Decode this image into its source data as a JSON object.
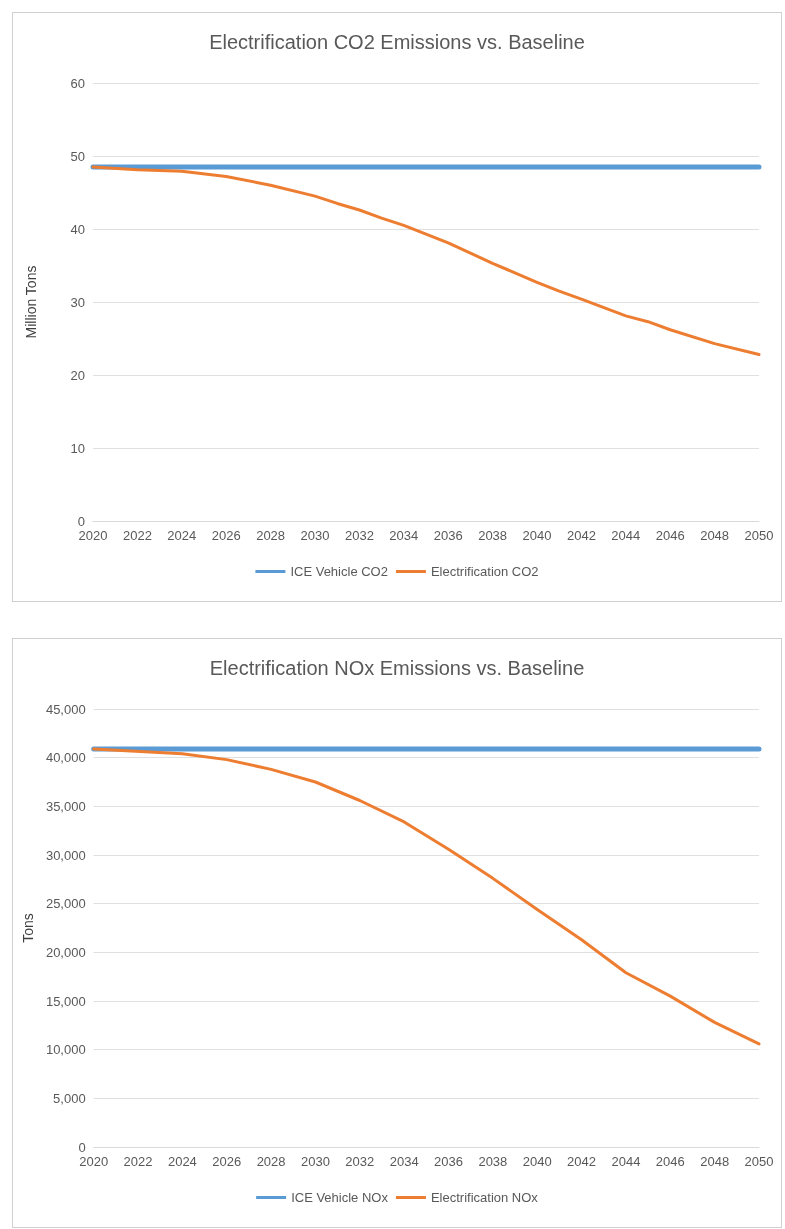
{
  "chart_data": [
    {
      "type": "line",
      "title": "Electrification CO2 Emissions vs. Baseline",
      "ylabel": "Million Tons",
      "xlim": [
        2020,
        2050
      ],
      "xticks": [
        2020,
        2022,
        2024,
        2026,
        2028,
        2030,
        2032,
        2034,
        2036,
        2038,
        2040,
        2042,
        2044,
        2046,
        2048,
        2050
      ],
      "ylim": [
        0,
        60
      ],
      "yticks": [
        0,
        10,
        20,
        30,
        40,
        50,
        60
      ],
      "grid": "y",
      "legend": "bottom",
      "marker": "none",
      "line_style": "solid",
      "series": [
        {
          "name": "ICE Vehicle CO2",
          "color": "#5b9bd5",
          "x": [
            2020,
            2050
          ],
          "values": [
            48.5,
            48.5
          ]
        },
        {
          "name": "Electrification CO2",
          "color": "#ed7d31",
          "x": [
            2020,
            2022,
            2024,
            2026,
            2028,
            2030,
            2031,
            2032,
            2033,
            2034,
            2036,
            2038,
            2040,
            2041,
            2042,
            2044,
            2045,
            2046,
            2048,
            2050
          ],
          "values": [
            48.5,
            48.1,
            47.9,
            47.2,
            46.0,
            44.5,
            43.5,
            42.6,
            41.5,
            40.5,
            38.1,
            35.3,
            32.7,
            31.5,
            30.4,
            28.1,
            27.3,
            26.2,
            24.3,
            22.8
          ]
        }
      ]
    },
    {
      "type": "line",
      "title": "Electrification NOx Emissions vs. Baseline",
      "ylabel": "Tons",
      "xlim": [
        2020,
        2050
      ],
      "xticks": [
        2020,
        2022,
        2024,
        2026,
        2028,
        2030,
        2032,
        2034,
        2036,
        2038,
        2040,
        2042,
        2044,
        2046,
        2048,
        2050
      ],
      "ylim": [
        0,
        45000
      ],
      "yticks": [
        0,
        {
          "value": 5000,
          "label": "5,000"
        },
        {
          "value": 10000,
          "label": "10,000"
        },
        {
          "value": 15000,
          "label": "15,000"
        },
        {
          "value": 20000,
          "label": "20,000"
        },
        {
          "value": 25000,
          "label": "25,000"
        },
        {
          "value": 30000,
          "label": "30,000"
        },
        {
          "value": 35000,
          "label": "35,000"
        },
        {
          "value": 40000,
          "label": "40,000"
        },
        {
          "value": 45000,
          "label": "45,000"
        }
      ],
      "grid": "y",
      "legend": "bottom",
      "marker": "none",
      "line_style": "solid",
      "series": [
        {
          "name": "ICE Vehicle NOx",
          "color": "#5b9bd5",
          "x": [
            2020,
            2050
          ],
          "values": [
            40900,
            40900
          ]
        },
        {
          "name": "Electrification NOx",
          "color": "#ed7d31",
          "x": [
            2020,
            2024,
            2026,
            2028,
            2030,
            2032,
            2034,
            2036,
            2038,
            2040,
            2042,
            2044,
            2046,
            2048,
            2050
          ],
          "values": [
            40900,
            40400,
            39800,
            38800,
            37500,
            35600,
            33400,
            30600,
            27600,
            24400,
            21300,
            17900,
            15500,
            12800,
            10600
          ]
        }
      ]
    }
  ]
}
